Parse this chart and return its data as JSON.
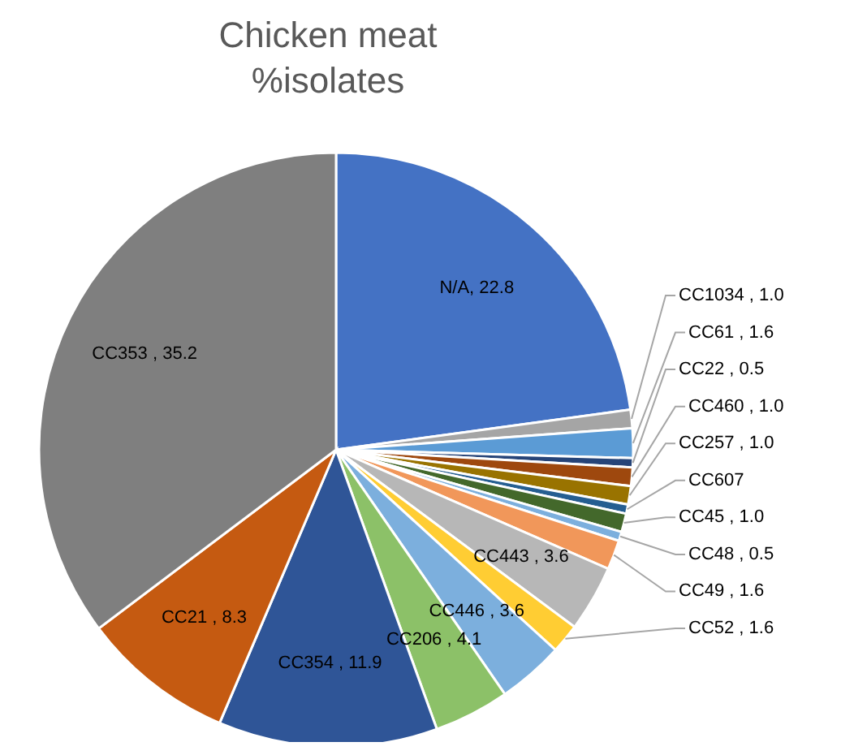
{
  "chart_data": {
    "type": "pie",
    "title": "Chicken meat\n%isolates",
    "categories": [
      "N/A",
      "CC1034",
      "CC61",
      "CC22",
      "CC460",
      "CC257",
      "CC607",
      "CC45",
      "CC48",
      "CC49",
      "CC443",
      "CC52",
      "CC446",
      "CC206",
      "CC354",
      "CC21",
      "CC353"
    ],
    "values": [
      22.8,
      1.0,
      1.6,
      0.5,
      1.0,
      1.0,
      0.5,
      1.0,
      0.5,
      1.6,
      3.6,
      1.6,
      3.6,
      4.1,
      11.9,
      8.3,
      35.2
    ],
    "value_labels": [
      ", 22.8",
      " , 1.0",
      " , 1.6",
      " , 0.5",
      " , 1.0",
      " , 1.0",
      null,
      " , 1.0",
      " , 0.5",
      " , 1.6",
      " , 3.6",
      " , 1.6",
      " , 3.6",
      " , 4.1",
      " , 11.9",
      " , 8.3",
      " , 35.2"
    ],
    "colors": [
      "#4472c4",
      "#a5a5a5",
      "#5b9bd5",
      "#264478",
      "#9e480e",
      "#997300",
      "#255e91",
      "#43682b",
      "#7cafdd",
      "#f1975a",
      "#b7b7b7",
      "#ffcd33",
      "#7cafdd",
      "#8cc168",
      "#2f5597",
      "#c55a11",
      "#7f7f7f"
    ],
    "legend": false
  }
}
